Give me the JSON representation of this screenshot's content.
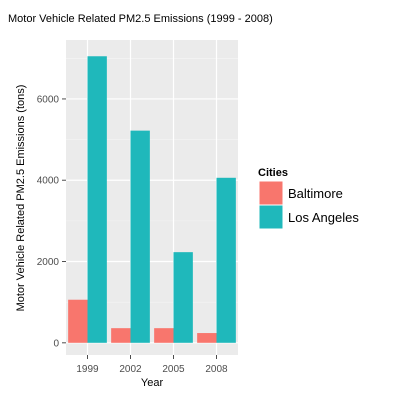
{
  "chart_data": {
    "type": "bar",
    "title": "Motor Vehicle Related PM2.5 Emissions (1999 - 2008)",
    "xlabel": "Year",
    "ylabel": "Motor Vehicle Related PM2.5 Emissions (tons)",
    "categories": [
      "1999",
      "2002",
      "2005",
      "2008"
    ],
    "series": [
      {
        "name": "Baltimore",
        "color": "#F8766D",
        "values": [
          1060,
          360,
          360,
          240
        ]
      },
      {
        "name": "Los Angeles",
        "color": "#1FB8BB",
        "values": [
          7050,
          5220,
          2230,
          4060
        ]
      }
    ],
    "ylim": [
      -300,
      7450
    ],
    "yticks": [
      0,
      2000,
      4000,
      6000
    ],
    "grid": true,
    "legend": {
      "title": "Cities",
      "placement": "right"
    }
  }
}
